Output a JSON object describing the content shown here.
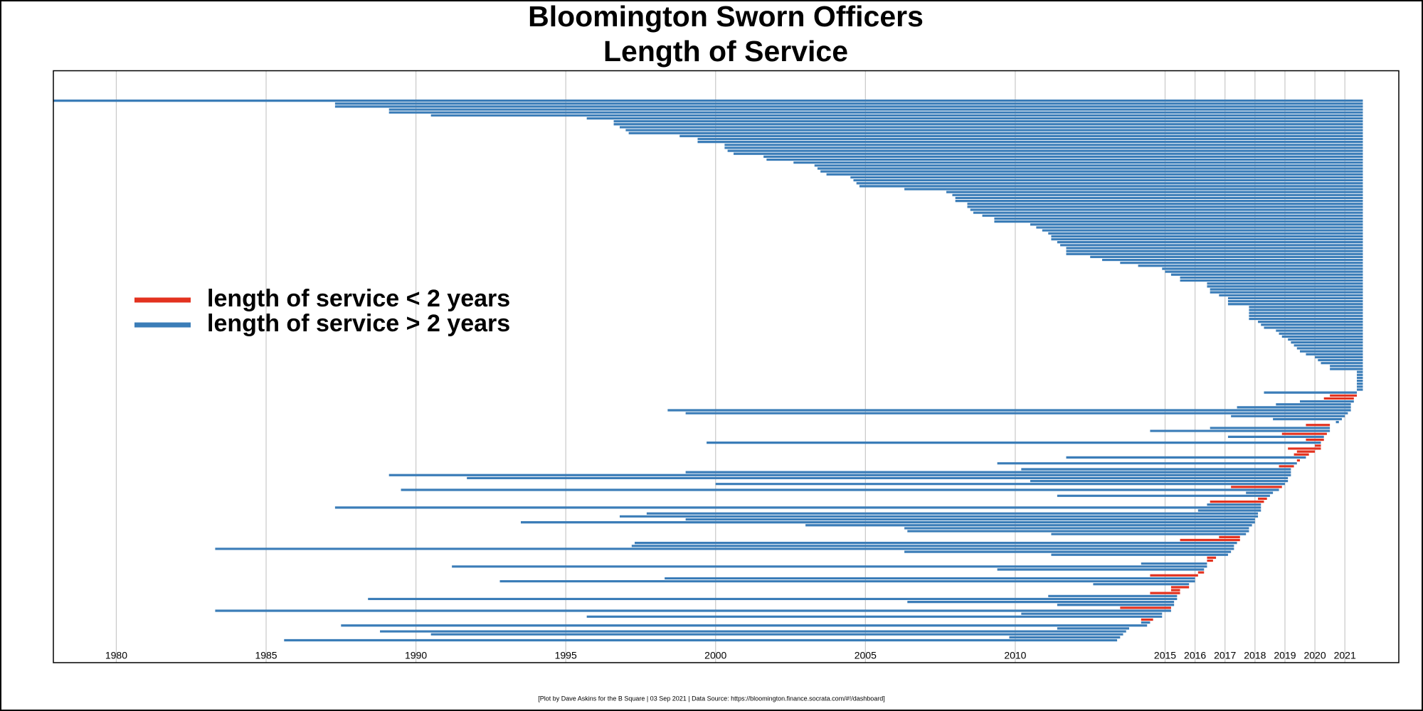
{
  "chart_data": {
    "type": "range",
    "title": "Bloomington Sworn Officers",
    "subtitle": "Length of Service",
    "caption": "[Plot by Dave Askins for the B Square | 03 Sep 2021 | Data Source: https://bloomington.finance.socrata.com/#!/dashboard]",
    "xlim": [
      1977.9,
      2022.8
    ],
    "xticks": [
      1980,
      1985,
      1990,
      1995,
      2000,
      2005,
      2010,
      2015,
      2016,
      2017,
      2018,
      2019,
      2020,
      2021
    ],
    "grid": true,
    "legend": "left",
    "series": [
      {
        "name": "length of service < 2 years",
        "color": "#e3321f",
        "starts": [
          null,
          null,
          null,
          null,
          null,
          null,
          null,
          null,
          null,
          null,
          null,
          null,
          null,
          null,
          null,
          null,
          null,
          null,
          null,
          null,
          null,
          null,
          null,
          null,
          null,
          null,
          null,
          null,
          null,
          null,
          null,
          null,
          null,
          null,
          null,
          null,
          null,
          null,
          null,
          null,
          null,
          null,
          null,
          null,
          null,
          null,
          null,
          null,
          null,
          null,
          null,
          null,
          null,
          null,
          null,
          null,
          null,
          null,
          null,
          null,
          null,
          null,
          null,
          null,
          null,
          null,
          null,
          null,
          null,
          null,
          null,
          null,
          null,
          null,
          null,
          null,
          null,
          null,
          null,
          null,
          null,
          null,
          null,
          null,
          null,
          null,
          null,
          null,
          null,
          null,
          null,
          null,
          null,
          null,
          null,
          null,
          null,
          null,
          null,
          null,
          2020.5,
          2020.3,
          null,
          null,
          null,
          null,
          null,
          null,
          null,
          null,
          2019.7,
          null,
          null,
          2018.9,
          null,
          2019.7,
          null,
          2020.0,
          2019.1,
          2019.4,
          2019.3,
          null,
          2019.4,
          null,
          2018.8,
          null,
          null,
          null,
          null,
          null,
          null,
          2017.2,
          null,
          null,
          null,
          2018.1,
          2016.5,
          null,
          null,
          null,
          null,
          null,
          null,
          null,
          null,
          null,
          null,
          null,
          2016.8,
          2015.5,
          null,
          null,
          null,
          null,
          null,
          2016.4,
          2016.4,
          null,
          null,
          null,
          2016.1,
          2014.5,
          null,
          null,
          null,
          2015.2,
          2015.2,
          2014.5,
          null,
          null,
          null,
          null,
          2013.5,
          null,
          null,
          null,
          2014.2,
          null,
          null,
          null,
          null,
          null,
          null,
          null
        ],
        "ends": [
          null,
          null,
          null,
          null,
          null,
          null,
          null,
          null,
          null,
          null,
          null,
          null,
          null,
          null,
          null,
          null,
          null,
          null,
          null,
          null,
          null,
          null,
          null,
          null,
          null,
          null,
          null,
          null,
          null,
          null,
          null,
          null,
          null,
          null,
          null,
          null,
          null,
          null,
          null,
          null,
          null,
          null,
          null,
          null,
          null,
          null,
          null,
          null,
          null,
          null,
          null,
          null,
          null,
          null,
          null,
          null,
          null,
          null,
          null,
          null,
          null,
          null,
          null,
          null,
          null,
          null,
          null,
          null,
          null,
          null,
          null,
          null,
          null,
          null,
          null,
          null,
          null,
          null,
          null,
          null,
          null,
          null,
          null,
          null,
          null,
          null,
          null,
          null,
          null,
          null,
          null,
          null,
          null,
          null,
          null,
          null,
          null,
          null,
          null,
          null,
          2021.4,
          2021.3,
          null,
          null,
          null,
          null,
          null,
          null,
          null,
          null,
          2020.5,
          null,
          null,
          2020.4,
          null,
          2020.3,
          null,
          2020.2,
          2020.2,
          2020.0,
          2019.8,
          null,
          2019.5,
          null,
          2019.3,
          null,
          null,
          null,
          null,
          null,
          null,
          2018.9,
          null,
          null,
          null,
          2018.4,
          2018.3,
          null,
          null,
          null,
          null,
          null,
          null,
          null,
          null,
          null,
          null,
          null,
          2017.5,
          2017.5,
          null,
          null,
          null,
          null,
          null,
          2016.7,
          2016.6,
          null,
          null,
          null,
          2016.3,
          2016.1,
          null,
          null,
          null,
          2015.8,
          2015.5,
          2015.5,
          null,
          null,
          null,
          null,
          2015.2,
          null,
          null,
          null,
          2014.6,
          null,
          null,
          null,
          null,
          null,
          null,
          null
        ]
      },
      {
        "name": "length of service > 2 years",
        "color": "#3b7db8",
        "starts": [
          1977.9,
          1987.3,
          1987.3,
          1989.1,
          1989.1,
          1990.5,
          1995.7,
          1996.6,
          1996.6,
          1996.8,
          1997.0,
          1997.1,
          1998.8,
          1999.4,
          1999.4,
          2000.3,
          2000.3,
          2000.4,
          2000.6,
          2001.6,
          2001.7,
          2002.6,
          2003.3,
          2003.4,
          2003.5,
          2003.7,
          2004.5,
          2004.6,
          2004.7,
          2004.8,
          2006.3,
          2007.7,
          2007.9,
          2008.0,
          2008.0,
          2008.4,
          2008.4,
          2008.5,
          2008.6,
          2008.9,
          2009.3,
          2009.3,
          2010.5,
          2010.7,
          2010.9,
          2011.1,
          2011.2,
          2011.2,
          2011.4,
          2011.5,
          2011.7,
          2011.7,
          2011.7,
          2012.5,
          2012.9,
          2013.5,
          2014.1,
          2014.9,
          2015.0,
          2015.2,
          2015.5,
          2015.5,
          2016.4,
          2016.4,
          2016.5,
          2016.5,
          2016.8,
          2017.1,
          2017.1,
          2017.1,
          2017.8,
          2017.8,
          2017.8,
          2017.8,
          2017.8,
          2018.1,
          2018.2,
          2018.3,
          2018.7,
          2018.8,
          2018.9,
          2019.1,
          2019.2,
          2019.3,
          2019.4,
          2019.5,
          2019.7,
          2020.0,
          2020.1,
          2020.2,
          2020.5,
          2020.5,
          2021.4,
          2021.4,
          2021.4,
          2021.4,
          2021.4,
          2021.4,
          2021.4,
          2018.3,
          null,
          null,
          2019.5,
          2018.7,
          2017.4,
          1998.4,
          1999.0,
          2017.2,
          2018.6,
          2020.7,
          null,
          2016.5,
          2014.5,
          null,
          2017.1,
          null,
          1999.7,
          null,
          null,
          null,
          null,
          2011.7,
          null,
          2009.4,
          null,
          2010.2,
          1999.0,
          1989.1,
          1991.7,
          2010.5,
          2000.0,
          null,
          1989.5,
          2017.7,
          2011.4,
          null,
          null,
          2016.4,
          1987.3,
          2016.1,
          1997.7,
          1996.8,
          1999.0,
          1993.5,
          2003.0,
          2006.3,
          2006.4,
          2011.2,
          null,
          null,
          1997.3,
          1997.2,
          1983.3,
          2006.3,
          2011.2,
          null,
          null,
          2014.2,
          1991.2,
          2009.4,
          null,
          null,
          1998.3,
          1992.8,
          2012.6,
          null,
          null,
          null,
          2011.1,
          1988.4,
          2006.4,
          2011.4,
          null,
          1983.3,
          2010.2,
          1995.7,
          null,
          2014.2,
          1987.5,
          2011.4,
          1988.8,
          1990.5,
          2009.8,
          1985.6
        ],
        "ends": [
          2021.6,
          2021.6,
          2021.6,
          2021.6,
          2021.6,
          2021.6,
          2021.6,
          2021.6,
          2021.6,
          2021.6,
          2021.6,
          2021.6,
          2021.6,
          2021.6,
          2021.6,
          2021.6,
          2021.6,
          2021.6,
          2021.6,
          2021.6,
          2021.6,
          2021.6,
          2021.6,
          2021.6,
          2021.6,
          2021.6,
          2021.6,
          2021.6,
          2021.6,
          2021.6,
          2021.6,
          2021.6,
          2021.6,
          2021.6,
          2021.6,
          2021.6,
          2021.6,
          2021.6,
          2021.6,
          2021.6,
          2021.6,
          2021.6,
          2021.6,
          2021.6,
          2021.6,
          2021.6,
          2021.6,
          2021.6,
          2021.6,
          2021.6,
          2021.6,
          2021.6,
          2021.6,
          2021.6,
          2021.6,
          2021.6,
          2021.6,
          2021.6,
          2021.6,
          2021.6,
          2021.6,
          2021.6,
          2021.6,
          2021.6,
          2021.6,
          2021.6,
          2021.6,
          2021.6,
          2021.6,
          2021.6,
          2021.6,
          2021.6,
          2021.6,
          2021.6,
          2021.6,
          2021.6,
          2021.6,
          2021.6,
          2021.6,
          2021.6,
          2021.6,
          2021.6,
          2021.6,
          2021.6,
          2021.6,
          2021.6,
          2021.6,
          2021.6,
          2021.6,
          2021.6,
          2021.6,
          2021.6,
          2021.6,
          2021.6,
          2021.6,
          2021.6,
          2021.6,
          2021.6,
          2021.6,
          2021.4,
          null,
          null,
          2021.3,
          2021.2,
          2021.2,
          2021.2,
          2021.1,
          2021.0,
          2020.9,
          2020.8,
          null,
          2020.5,
          2020.5,
          null,
          2020.3,
          null,
          2020.2,
          null,
          null,
          null,
          null,
          2019.7,
          null,
          2019.4,
          null,
          2019.2,
          2019.2,
          2019.2,
          2019.1,
          2019.1,
          2019.0,
          null,
          2018.8,
          2018.6,
          2018.5,
          null,
          null,
          2018.2,
          2018.2,
          2018.2,
          2018.1,
          2018.1,
          2018.0,
          2018.0,
          2017.9,
          2017.8,
          2017.8,
          2017.7,
          null,
          null,
          2017.4,
          2017.3,
          2017.3,
          2017.2,
          2017.1,
          null,
          null,
          2016.4,
          2016.4,
          2016.3,
          null,
          null,
          2016.0,
          2016.0,
          2015.8,
          null,
          null,
          null,
          2015.4,
          2015.4,
          2015.3,
          2015.3,
          null,
          2015.2,
          2014.9,
          2014.9,
          null,
          2014.5,
          2014.4,
          2013.8,
          2013.7,
          2013.6,
          2013.5,
          2013.4
        ]
      }
    ]
  }
}
